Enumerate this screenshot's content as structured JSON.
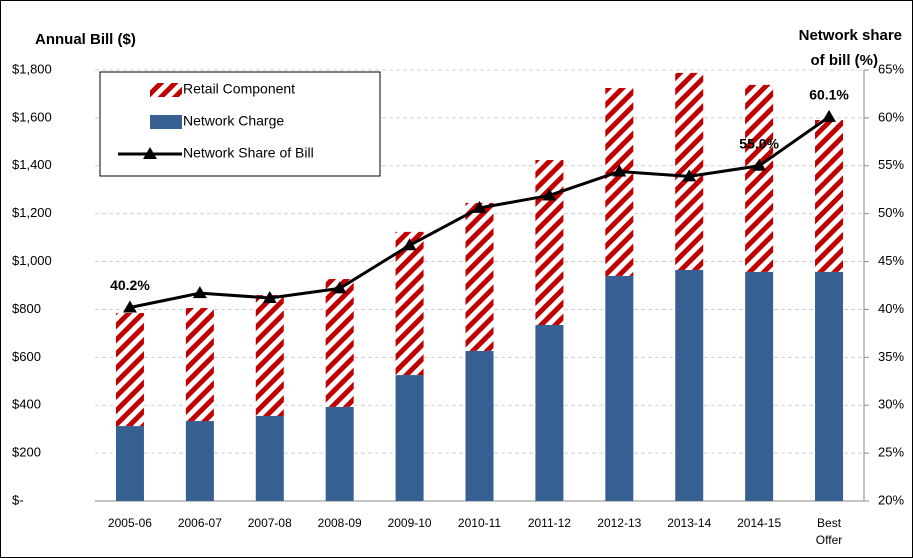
{
  "chart_data": {
    "type": "bar_line",
    "y_title": "Annual Bill ($)",
    "y2_title": [
      "Network share",
      "of bill (%)"
    ],
    "categories": [
      "2005-06",
      "2006-07",
      "2007-08",
      "2008-09",
      "2009-10",
      "2010-11",
      "2011-12",
      "2012-13",
      "2013-14",
      "2014-15",
      [
        "Best",
        "Offer"
      ]
    ],
    "series": [
      {
        "name": "Retail Component",
        "color": "#c00000",
        "stack": "bill",
        "values": [
          472,
          472,
          505,
          534,
          598,
          618,
          689,
          785,
          823,
          781,
          634
        ]
      },
      {
        "name": "Network Charge",
        "color": "#366092",
        "stack": "bill",
        "values": [
          313,
          334,
          355,
          393,
          526,
          627,
          735,
          940,
          965,
          957,
          957
        ]
      },
      {
        "name": "Network Share of Bill",
        "color": "#000000",
        "axis": "y2",
        "values": [
          40.2,
          41.7,
          41.2,
          42.2,
          46.7,
          50.6,
          51.9,
          54.4,
          53.9,
          55.0,
          60.1
        ],
        "value_labels": [
          "40.2%",
          null,
          null,
          null,
          null,
          null,
          null,
          null,
          null,
          "55.0%",
          "60.1%"
        ]
      }
    ],
    "ylim": [
      0,
      1800
    ],
    "yticks": [
      {
        "value": 0,
        "label": "$-"
      },
      {
        "value": 200,
        "label": "$200"
      },
      {
        "value": 400,
        "label": "$400"
      },
      {
        "value": 600,
        "label": "$600"
      },
      {
        "value": 800,
        "label": "$800"
      },
      {
        "value": 1000,
        "label": "$1,000"
      },
      {
        "value": 1200,
        "label": "$1,200"
      },
      {
        "value": 1400,
        "label": "$1,400"
      },
      {
        "value": 1600,
        "label": "$1,600"
      },
      {
        "value": 1800,
        "label": "$1,800"
      }
    ],
    "y2lim": [
      20,
      65
    ],
    "y2ticks": [
      {
        "value": 20,
        "label": "20%"
      },
      {
        "value": 25,
        "label": "25%"
      },
      {
        "value": 30,
        "label": "30%"
      },
      {
        "value": 35,
        "label": "35%"
      },
      {
        "value": 40,
        "label": "40%"
      },
      {
        "value": 45,
        "label": "45%"
      },
      {
        "value": 50,
        "label": "50%"
      },
      {
        "value": 55,
        "label": "55%"
      },
      {
        "value": 60,
        "label": "60%"
      },
      {
        "value": 65,
        "label": "65%"
      }
    ],
    "grid": true,
    "legend": "upper left"
  }
}
